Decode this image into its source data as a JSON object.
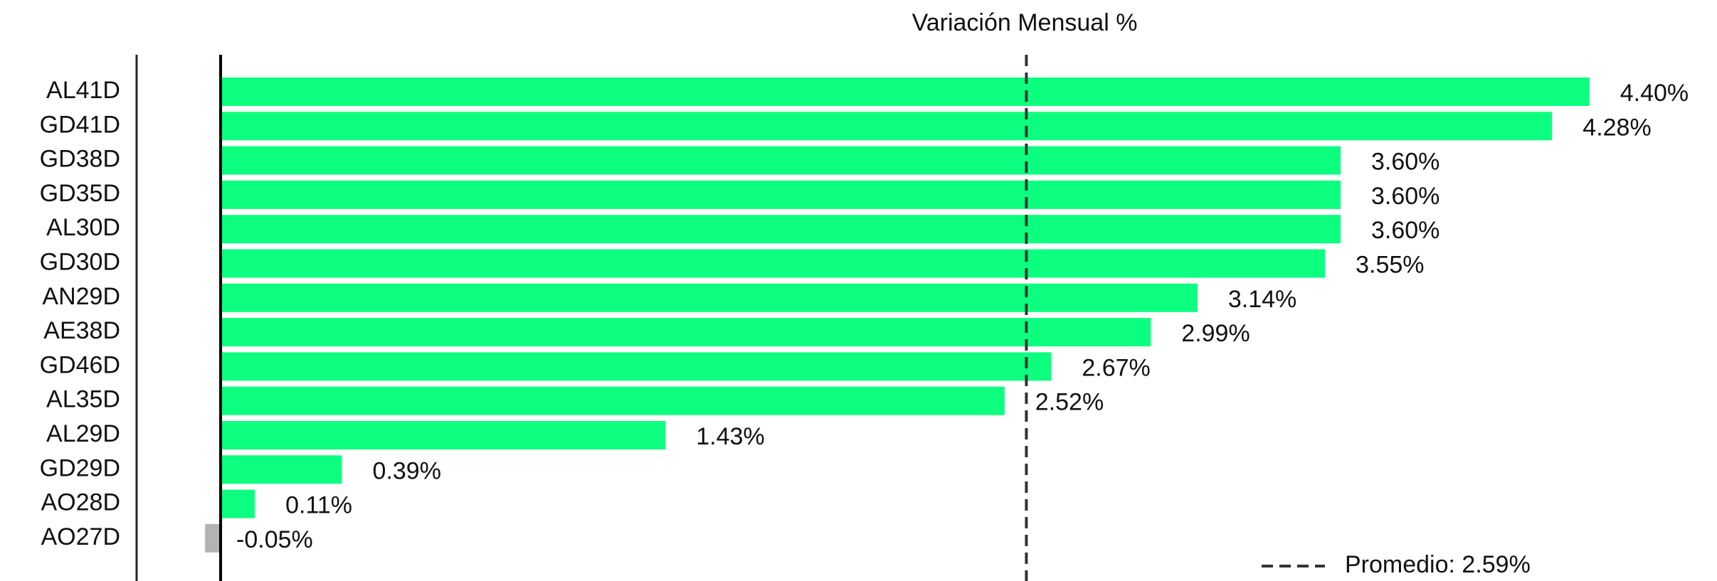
{
  "chart_data": {
    "type": "barh",
    "title": "Variación Mensual %",
    "categories": [
      "AL41D",
      "GD41D",
      "GD38D",
      "GD35D",
      "AL30D",
      "GD30D",
      "AN29D",
      "AE38D",
      "GD46D",
      "AL35D",
      "AL29D",
      "GD29D",
      "AO28D",
      "AO27D"
    ],
    "values": [
      4.4,
      4.28,
      3.6,
      3.6,
      3.6,
      3.55,
      3.14,
      2.99,
      2.67,
      2.52,
      1.43,
      0.39,
      0.11,
      -0.05
    ],
    "value_labels": [
      "4.40%",
      "4.28%",
      "3.60%",
      "3.60%",
      "3.60%",
      "3.55%",
      "3.14%",
      "2.99%",
      "2.67%",
      "2.52%",
      "1.43%",
      "0.39%",
      "0.11%",
      "-0.05%"
    ],
    "color": "#0dff80",
    "negative_color": "#b3b3b3",
    "xlim": [
      -0.27,
      4.81
    ],
    "average": {
      "value": 2.59,
      "label": "Promedio: 2.59%"
    },
    "legend": "lower right"
  }
}
